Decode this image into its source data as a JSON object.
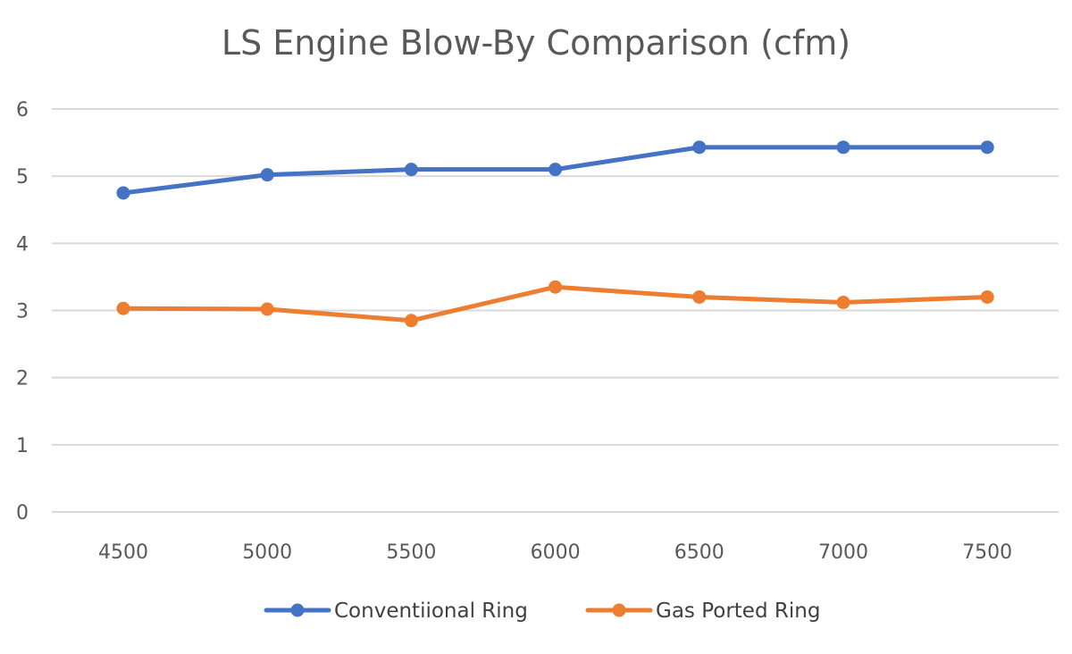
{
  "chart_data": {
    "type": "line",
    "title": "LS Engine Blow-By Comparison (cfm)",
    "xlabel": "",
    "ylabel": "",
    "categories": [
      "4500",
      "5000",
      "5500",
      "6000",
      "6500",
      "7000",
      "7500"
    ],
    "ylim": [
      0,
      6
    ],
    "yticks": [
      "0",
      "1",
      "2",
      "3",
      "4",
      "5",
      "6"
    ],
    "grid": true,
    "legend_position": "bottom",
    "series": [
      {
        "name": "Conventiional Ring",
        "color": "#4472C4",
        "values": [
          4.75,
          5.02,
          5.1,
          5.1,
          5.43,
          5.43,
          5.43
        ]
      },
      {
        "name": "Gas Ported Ring",
        "color": "#ED7D31",
        "values": [
          3.03,
          3.02,
          2.85,
          3.35,
          3.2,
          3.12,
          3.2
        ]
      }
    ]
  }
}
